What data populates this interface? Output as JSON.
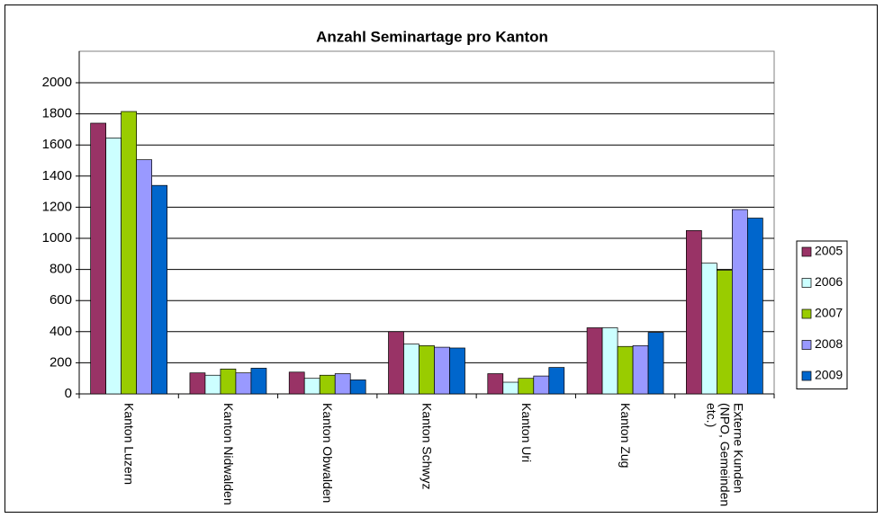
{
  "chart_data": {
    "type": "bar",
    "title": "Anzahl Seminartage pro Kanton",
    "categories": [
      "Kanton Luzern",
      "Kanton Nidwalden",
      "Kanton Obwalden",
      "Kanton Schwyz",
      "Kanton Uri",
      "Kanton Zug",
      "Externe Kunden (NPO, Gemeinden etc.)"
    ],
    "series": [
      {
        "name": "2005",
        "color": "#993366",
        "values": [
          1740,
          135,
          140,
          400,
          130,
          425,
          1050
        ]
      },
      {
        "name": "2006",
        "color": "#ccffff",
        "values": [
          1645,
          120,
          100,
          320,
          75,
          425,
          840
        ]
      },
      {
        "name": "2007",
        "color": "#99cc00",
        "values": [
          1815,
          160,
          120,
          310,
          100,
          305,
          795
        ]
      },
      {
        "name": "2008",
        "color": "#9999ff",
        "values": [
          1505,
          135,
          130,
          300,
          115,
          310,
          1185
        ]
      },
      {
        "name": "2009",
        "color": "#0066cc",
        "values": [
          1340,
          165,
          90,
          295,
          170,
          395,
          1130
        ]
      }
    ],
    "ylim": [
      0,
      2000
    ],
    "yticks": [
      0,
      200,
      400,
      600,
      800,
      1000,
      1200,
      1400,
      1600,
      1800,
      2000
    ],
    "grid": true,
    "legend": "right"
  }
}
